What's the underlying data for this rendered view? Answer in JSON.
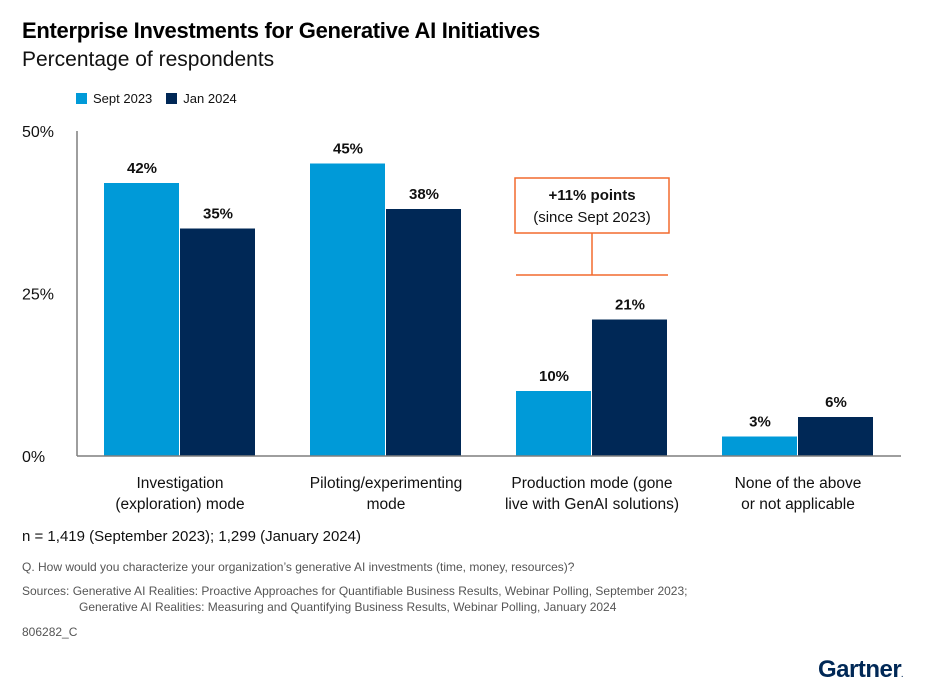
{
  "header": {
    "title": "Enterprise Investments for Generative AI Initiatives",
    "subtitle": "Percentage of respondents"
  },
  "colors": {
    "sept_2023": "#009ad8",
    "jan_2024": "#002856",
    "annotation": "#f26a2e",
    "axis": "#7f7f7f"
  },
  "chart_data": {
    "type": "bar",
    "title": "Enterprise Investments for Generative AI Initiatives",
    "subtitle": "Percentage of respondents",
    "xlabel": "",
    "ylabel": "",
    "ylim": [
      0,
      50
    ],
    "yticks": [
      0,
      25,
      50
    ],
    "ytick_labels": [
      "0%",
      "25%",
      "50%"
    ],
    "grid": false,
    "legend_position": "top-left",
    "categories": [
      "Investigation (exploration) mode",
      "Piloting/experimenting mode",
      "Production mode (gone live with GenAI solutions)",
      "None of the above or not applicable"
    ],
    "category_label_lines": [
      [
        "Investigation",
        "(exploration) mode"
      ],
      [
        "Piloting/experimenting",
        "mode"
      ],
      [
        "Production mode (gone",
        "live with GenAI solutions)"
      ],
      [
        "None of the above",
        "or not applicable"
      ]
    ],
    "series": [
      {
        "name": "Sept 2023",
        "values": [
          42,
          45,
          10,
          3
        ],
        "labels": [
          "42%",
          "45%",
          "10%",
          "3%"
        ]
      },
      {
        "name": "Jan 2024",
        "values": [
          35,
          38,
          21,
          6
        ],
        "labels": [
          "35%",
          "38%",
          "21%",
          "6%"
        ]
      }
    ],
    "annotation": {
      "category_index": 2,
      "line1": "+11% points",
      "line2": "(since Sept 2023)"
    }
  },
  "footer": {
    "n_note": "n = 1,419 (September 2023); 1,299 (January 2024)",
    "question": "Q. How would you characterize your organization’s generative AI investments (time, money, resources)?",
    "sources_line1": "Sources: Generative AI Realities: Proactive Approaches for Quantifiable Business Results, Webinar Polling, September 2023;",
    "sources_line2": "Generative AI Realities: Measuring and Quantifying Business Results, Webinar Polling, January 2024",
    "code": "806282_C",
    "logo": "Gartner",
    "logo_mark": "."
  }
}
